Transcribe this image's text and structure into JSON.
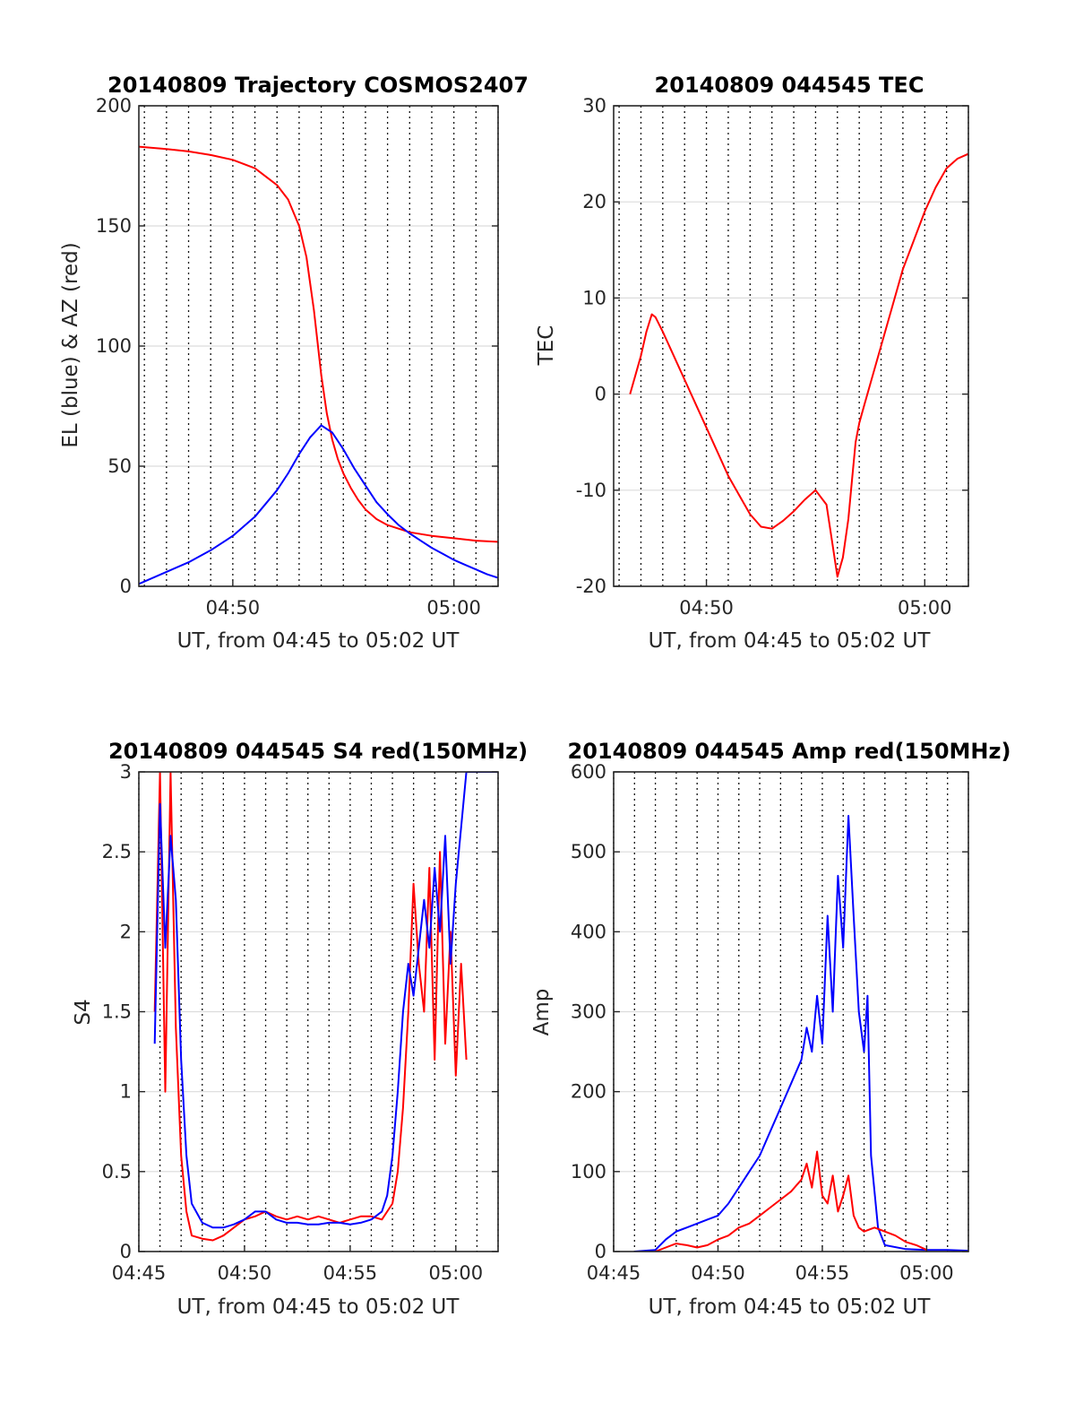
{
  "figure": {
    "background": "#ffffff",
    "colors": {
      "red": "#ff0000",
      "blue": "#0000ff"
    }
  },
  "chart_data": [
    {
      "type": "line",
      "title": "20140809 Trajectory COSMOS2407",
      "xlabel": "UT, from 04:45 to 05:02 UT",
      "ylabel": "EL (blue) & AZ (red)",
      "xlim": [
        "04:45:45",
        "05:02:00"
      ],
      "ylim": [
        0,
        200
      ],
      "yticks": [
        0,
        50,
        100,
        150,
        200
      ],
      "xticks": [
        "04:50",
        "05:00"
      ],
      "grid": true,
      "series": [
        {
          "name": "AZ",
          "color": "#ff0000",
          "x": [
            "04:45:45",
            "04:47:00",
            "04:48:00",
            "04:49:00",
            "04:50:00",
            "04:51:00",
            "04:52:00",
            "04:52:30",
            "04:53:00",
            "04:53:20",
            "04:53:40",
            "04:54:00",
            "04:54:15",
            "04:54:30",
            "04:54:45",
            "04:55:00",
            "04:55:20",
            "04:55:40",
            "04:56:00",
            "04:56:30",
            "04:57:00",
            "04:58:00",
            "04:59:00",
            "05:00:00",
            "05:01:00",
            "05:02:00"
          ],
          "y": [
            183,
            182,
            181,
            179.5,
            177.5,
            174,
            167,
            161,
            150,
            137,
            115,
            88,
            72,
            61,
            53,
            47,
            41,
            36,
            32,
            28,
            25.5,
            22.5,
            21,
            20,
            19,
            18.5
          ]
        },
        {
          "name": "EL",
          "color": "#0000ff",
          "x": [
            "04:45:45",
            "04:47:00",
            "04:48:00",
            "04:49:00",
            "04:50:00",
            "04:51:00",
            "04:52:00",
            "04:52:30",
            "04:53:00",
            "04:53:30",
            "04:54:00",
            "04:54:30",
            "04:55:00",
            "04:55:30",
            "04:56:00",
            "04:56:30",
            "04:57:00",
            "04:57:30",
            "04:58:00",
            "04:58:30",
            "04:59:00",
            "04:59:30",
            "05:00:00",
            "05:00:30",
            "05:01:00",
            "05:01:30",
            "05:02:00"
          ],
          "y": [
            1,
            6,
            10,
            15,
            21,
            29,
            40,
            47,
            55,
            62,
            67,
            64,
            57,
            49,
            42,
            35,
            30,
            25.5,
            22,
            19,
            16,
            13.5,
            11,
            9,
            7,
            5,
            3.5
          ]
        }
      ]
    },
    {
      "type": "line",
      "title": "20140809 044545 TEC",
      "xlabel": "UT, from 04:45 to 05:02 UT",
      "ylabel": "TEC",
      "xlim": [
        "04:45:45",
        "05:02:00"
      ],
      "ylim": [
        -20,
        30
      ],
      "yticks": [
        -20,
        -10,
        0,
        10,
        20,
        30
      ],
      "xticks": [
        "04:50",
        "05:00"
      ],
      "grid": true,
      "series": [
        {
          "name": "TEC",
          "color": "#ff0000",
          "x": [
            "04:46:30",
            "04:46:45",
            "04:47:00",
            "04:47:15",
            "04:47:30",
            "04:47:40",
            "04:48:00",
            "04:48:30",
            "04:49:00",
            "04:49:30",
            "04:50:00",
            "04:50:30",
            "04:51:00",
            "04:51:30",
            "04:52:00",
            "04:52:30",
            "04:53:00",
            "04:53:30",
            "04:54:00",
            "04:54:30",
            "04:55:00",
            "04:55:30",
            "04:56:00",
            "04:56:15",
            "04:56:30",
            "04:56:40",
            "04:56:50",
            "04:57:00",
            "04:57:15",
            "04:57:30",
            "04:58:00",
            "04:58:30",
            "04:59:00",
            "04:59:30",
            "05:00:00",
            "05:00:30",
            "05:01:00",
            "05:01:30",
            "05:02:00"
          ],
          "y": [
            0,
            2,
            4,
            6.5,
            8.3,
            8,
            6.5,
            4,
            1.5,
            -1,
            -3.5,
            -6,
            -8.5,
            -10.5,
            -12.5,
            -13.8,
            -14,
            -13.2,
            -12.2,
            -11,
            -10,
            -11.5,
            -19,
            -17,
            -13,
            -9,
            -5,
            -3,
            -1,
            1,
            5,
            9,
            13,
            16,
            19,
            21.5,
            23.5,
            24.5,
            25
          ]
        }
      ]
    },
    {
      "type": "line",
      "title": "20140809 044545 S4 red(150MHz)",
      "xlabel": "UT, from 04:45 to 05:02 UT",
      "ylabel": "S4",
      "xlim": [
        "04:45:00",
        "05:02:00"
      ],
      "ylim": [
        0,
        3
      ],
      "yticks": [
        0,
        0.5,
        1,
        1.5,
        2,
        2.5,
        3
      ],
      "xticks": [
        "04:45",
        "04:50",
        "04:55",
        "05:00"
      ],
      "grid": true,
      "series": [
        {
          "color": "#ff0000",
          "x": [
            "04:45:45",
            "04:46:00",
            "04:46:15",
            "04:46:30",
            "04:46:45",
            "04:47:00",
            "04:47:15",
            "04:47:30",
            "04:48:00",
            "04:48:30",
            "04:49:00",
            "04:49:30",
            "04:50:00",
            "04:50:30",
            "04:51:00",
            "04:51:30",
            "04:52:00",
            "04:52:30",
            "04:53:00",
            "04:53:30",
            "04:54:00",
            "04:54:30",
            "04:55:00",
            "04:55:30",
            "04:56:00",
            "04:56:30",
            "04:57:00",
            "04:57:15",
            "04:57:30",
            "04:57:45",
            "04:58:00",
            "04:58:15",
            "04:58:30",
            "04:58:45",
            "04:59:00",
            "04:59:15",
            "04:59:30",
            "04:59:45",
            "05:00:00",
            "05:00:15",
            "05:00:30"
          ],
          "y": [
            1.5,
            3,
            1,
            3,
            1.4,
            0.6,
            0.25,
            0.1,
            0.08,
            0.07,
            0.1,
            0.15,
            0.2,
            0.22,
            0.25,
            0.22,
            0.2,
            0.22,
            0.2,
            0.22,
            0.2,
            0.18,
            0.2,
            0.22,
            0.22,
            0.2,
            0.3,
            0.5,
            0.9,
            1.5,
            2.3,
            1.8,
            1.5,
            2.4,
            1.2,
            2.5,
            1.3,
            2.0,
            1.1,
            1.8,
            1.2
          ]
        },
        {
          "color": "#0000ff",
          "x": [
            "04:45:45",
            "04:46:00",
            "04:46:15",
            "04:46:30",
            "04:46:45",
            "04:47:00",
            "04:47:15",
            "04:47:30",
            "04:48:00",
            "04:48:30",
            "04:49:00",
            "04:49:30",
            "04:50:00",
            "04:50:30",
            "04:51:00",
            "04:51:30",
            "04:52:00",
            "04:52:30",
            "04:53:00",
            "04:53:30",
            "04:54:00",
            "04:54:30",
            "04:55:00",
            "04:55:30",
            "04:56:00",
            "04:56:30",
            "04:56:45",
            "04:57:00",
            "04:57:15",
            "04:57:30",
            "04:57:45",
            "04:58:00",
            "04:58:15",
            "04:58:30",
            "04:58:45",
            "04:59:00",
            "04:59:15",
            "04:59:30",
            "04:59:45",
            "05:00:00",
            "05:00:30",
            "05:01:00",
            "05:01:30",
            "05:02:00"
          ],
          "y": [
            1.3,
            2.8,
            1.9,
            2.6,
            2.2,
            1.2,
            0.6,
            0.3,
            0.18,
            0.15,
            0.15,
            0.17,
            0.2,
            0.25,
            0.25,
            0.2,
            0.18,
            0.18,
            0.17,
            0.17,
            0.18,
            0.18,
            0.17,
            0.18,
            0.2,
            0.25,
            0.35,
            0.6,
            1.0,
            1.5,
            1.8,
            1.6,
            1.9,
            2.2,
            1.9,
            2.4,
            2.0,
            2.6,
            1.8,
            2.3,
            3,
            3,
            3,
            3
          ]
        }
      ]
    },
    {
      "type": "line",
      "title": "20140809 044545 Amp red(150MHz)",
      "xlabel": "UT, from 04:45 to 05:02 UT",
      "ylabel": "Amp",
      "xlim": [
        "04:45:00",
        "05:02:00"
      ],
      "ylim": [
        0,
        600
      ],
      "yticks": [
        0,
        100,
        200,
        300,
        400,
        500,
        600
      ],
      "xticks": [
        "04:45",
        "04:50",
        "04:55",
        "05:00"
      ],
      "grid": true,
      "series": [
        {
          "color": "#0000ff",
          "x": [
            "04:46:00",
            "04:47:00",
            "04:47:30",
            "04:48:00",
            "04:48:30",
            "04:49:00",
            "04:49:30",
            "04:50:00",
            "04:50:30",
            "04:51:00",
            "04:51:30",
            "04:52:00",
            "04:52:30",
            "04:53:00",
            "04:53:30",
            "04:54:00",
            "04:54:15",
            "04:54:30",
            "04:54:45",
            "04:55:00",
            "04:55:15",
            "04:55:30",
            "04:55:45",
            "04:56:00",
            "04:56:15",
            "04:56:30",
            "04:56:45",
            "04:57:00",
            "04:57:10",
            "04:57:20",
            "04:57:40",
            "04:58:00",
            "04:59:00",
            "05:00:00",
            "05:01:00",
            "05:02:00"
          ],
          "y": [
            0,
            2,
            15,
            25,
            30,
            35,
            40,
            45,
            60,
            80,
            100,
            120,
            150,
            180,
            210,
            240,
            280,
            250,
            320,
            260,
            420,
            300,
            470,
            380,
            545,
            420,
            300,
            250,
            320,
            120,
            30,
            8,
            3,
            2,
            2,
            1
          ]
        },
        {
          "color": "#ff0000",
          "x": [
            "04:47:00",
            "04:47:30",
            "04:48:00",
            "04:48:30",
            "04:49:00",
            "04:49:30",
            "04:50:00",
            "04:50:30",
            "04:51:00",
            "04:51:30",
            "04:52:00",
            "04:52:30",
            "04:53:00",
            "04:53:30",
            "04:54:00",
            "04:54:15",
            "04:54:30",
            "04:54:45",
            "04:55:00",
            "04:55:15",
            "04:55:30",
            "04:55:45",
            "04:56:00",
            "04:56:15",
            "04:56:30",
            "04:56:45",
            "04:57:00",
            "04:57:30",
            "04:58:00",
            "04:58:30",
            "04:59:00",
            "04:59:30",
            "05:00:00"
          ],
          "y": [
            0,
            5,
            10,
            8,
            5,
            8,
            15,
            20,
            30,
            35,
            45,
            55,
            65,
            75,
            90,
            110,
            80,
            125,
            70,
            60,
            95,
            50,
            70,
            95,
            45,
            30,
            25,
            30,
            25,
            20,
            12,
            8,
            2
          ]
        }
      ]
    }
  ]
}
